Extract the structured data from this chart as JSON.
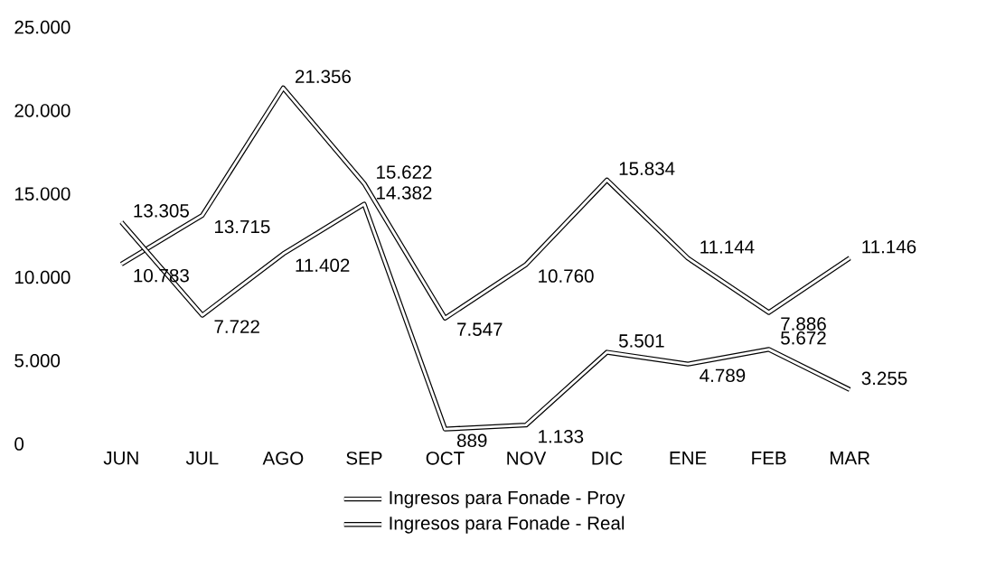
{
  "chart_data": {
    "type": "line",
    "categories": [
      "JUN",
      "JUL",
      "AGO",
      "SEP",
      "OCT",
      "NOV",
      "DIC",
      "ENE",
      "FEB",
      "MAR"
    ],
    "series": [
      {
        "name": "Ingresos para Fonade - Proy",
        "color": "#000000",
        "values": [
          10783,
          13715,
          21356,
          15622,
          7547,
          10760,
          15834,
          11144,
          7886,
          11146
        ],
        "value_labels": [
          "10.783",
          "13.715",
          "21.356",
          "15.622",
          "7.547",
          "10.760",
          "15.834",
          "11.144",
          "7.886",
          "11.146"
        ]
      },
      {
        "name": "Ingresos para Fonade - Real",
        "color": "#000000",
        "values": [
          13305,
          7722,
          11402,
          14382,
          889,
          1133,
          5501,
          4789,
          5672,
          3255
        ],
        "value_labels": [
          "13.305",
          "7.722",
          "11.402",
          "14.382",
          "889",
          "1.133",
          "5.501",
          "4.789",
          "5.672",
          "3.255"
        ]
      }
    ],
    "ylim": [
      0,
      25000
    ],
    "yticks": [
      0,
      {
        "value": 5000,
        "label": "5.000"
      },
      {
        "value": 10000,
        "label": "10.000"
      },
      {
        "value": 15000,
        "label": "15.000"
      },
      {
        "value": 20000,
        "label": "20.000"
      },
      {
        "value": 25000,
        "label": "25.000"
      }
    ],
    "grid": false,
    "legend": "bottom",
    "marker": "none",
    "line_style": "solid"
  }
}
